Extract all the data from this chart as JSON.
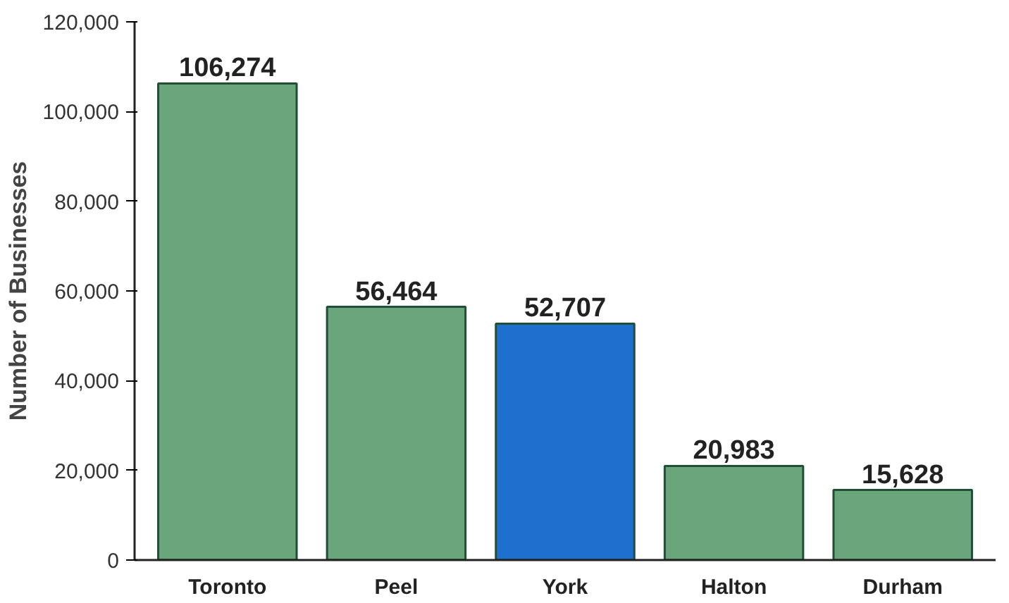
{
  "chart_data": {
    "type": "bar",
    "ylabel": "Number of Businesses",
    "categories": [
      "Toronto",
      "Peel",
      "York",
      "Halton",
      "Durham"
    ],
    "values": [
      106274,
      56464,
      52707,
      20983,
      15628
    ],
    "colors": [
      "#6aa57c",
      "#6aa57c",
      "#1f6fce",
      "#6aa57c",
      "#6aa57c"
    ],
    "ylim": [
      0,
      120000
    ],
    "yticks": [
      {
        "value": 0,
        "label": "0"
      },
      {
        "value": 20000,
        "label": "20,000"
      },
      {
        "value": 40000,
        "label": "40,000"
      },
      {
        "value": 60000,
        "label": "60,000"
      },
      {
        "value": 80000,
        "label": "80,000"
      },
      {
        "value": 100000,
        "label": "100,000"
      },
      {
        "value": 120000,
        "label": "120,000"
      }
    ],
    "value_labels": [
      "106,274",
      "56,464",
      "52,707",
      "20,983",
      "15,628"
    ],
    "grid": false
  }
}
